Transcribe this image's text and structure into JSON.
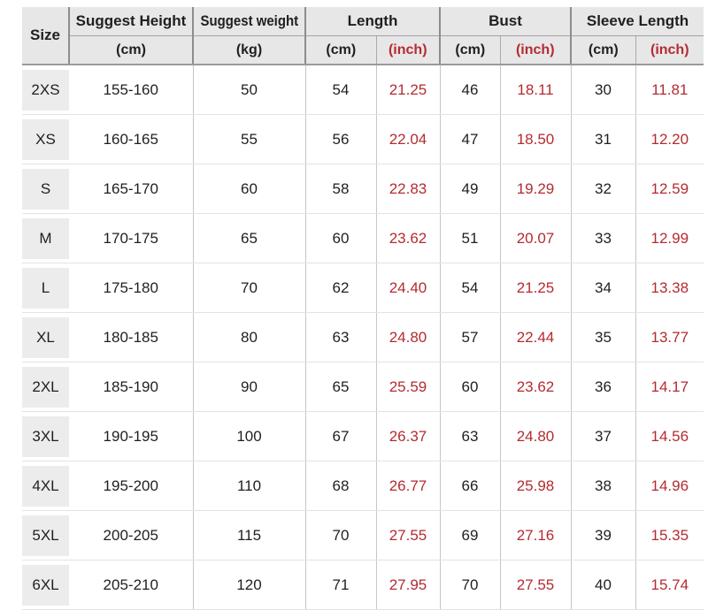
{
  "chart_data": {
    "type": "table",
    "header": {
      "size": "Size",
      "groups": [
        {
          "label": "Suggest Height",
          "units": [
            "(cm)"
          ]
        },
        {
          "label": "Suggest weight",
          "units": [
            "(kg)"
          ]
        },
        {
          "label": "Length",
          "units": [
            "(cm)",
            "(inch)"
          ]
        },
        {
          "label": "Bust",
          "units": [
            "(cm)",
            "(inch)"
          ]
        },
        {
          "label": "Sleeve Length",
          "units": [
            "(cm)",
            "(inch)"
          ]
        }
      ],
      "flat_columns": [
        "Size",
        "Suggest Height (cm)",
        "Suggest weight (kg)",
        "Length (cm)",
        "Length (inch)",
        "Bust (cm)",
        "Bust (inch)",
        "Sleeve Length (cm)",
        "Sleeve Length (inch)"
      ]
    },
    "rows": [
      {
        "size": "2XS",
        "height_cm": "155-160",
        "weight_kg": "50",
        "length_cm": "54",
        "length_inch": "21.25",
        "bust_cm": "46",
        "bust_inch": "18.11",
        "sleeve_cm": "30",
        "sleeve_inch": "11.81"
      },
      {
        "size": "XS",
        "height_cm": "160-165",
        "weight_kg": "55",
        "length_cm": "56",
        "length_inch": "22.04",
        "bust_cm": "47",
        "bust_inch": "18.50",
        "sleeve_cm": "31",
        "sleeve_inch": "12.20"
      },
      {
        "size": "S",
        "height_cm": "165-170",
        "weight_kg": "60",
        "length_cm": "58",
        "length_inch": "22.83",
        "bust_cm": "49",
        "bust_inch": "19.29",
        "sleeve_cm": "32",
        "sleeve_inch": "12.59"
      },
      {
        "size": "M",
        "height_cm": "170-175",
        "weight_kg": "65",
        "length_cm": "60",
        "length_inch": "23.62",
        "bust_cm": "51",
        "bust_inch": "20.07",
        "sleeve_cm": "33",
        "sleeve_inch": "12.99"
      },
      {
        "size": "L",
        "height_cm": "175-180",
        "weight_kg": "70",
        "length_cm": "62",
        "length_inch": "24.40",
        "bust_cm": "54",
        "bust_inch": "21.25",
        "sleeve_cm": "34",
        "sleeve_inch": "13.38"
      },
      {
        "size": "XL",
        "height_cm": "180-185",
        "weight_kg": "80",
        "length_cm": "63",
        "length_inch": "24.80",
        "bust_cm": "57",
        "bust_inch": "22.44",
        "sleeve_cm": "35",
        "sleeve_inch": "13.77"
      },
      {
        "size": "2XL",
        "height_cm": "185-190",
        "weight_kg": "90",
        "length_cm": "65",
        "length_inch": "25.59",
        "bust_cm": "60",
        "bust_inch": "23.62",
        "sleeve_cm": "36",
        "sleeve_inch": "14.17"
      },
      {
        "size": "3XL",
        "height_cm": "190-195",
        "weight_kg": "100",
        "length_cm": "67",
        "length_inch": "26.37",
        "bust_cm": "63",
        "bust_inch": "24.80",
        "sleeve_cm": "37",
        "sleeve_inch": "14.56"
      },
      {
        "size": "4XL",
        "height_cm": "195-200",
        "weight_kg": "110",
        "length_cm": "68",
        "length_inch": "26.77",
        "bust_cm": "66",
        "bust_inch": "25.98",
        "sleeve_cm": "38",
        "sleeve_inch": "14.96"
      },
      {
        "size": "5XL",
        "height_cm": "200-205",
        "weight_kg": "115",
        "length_cm": "70",
        "length_inch": "27.55",
        "bust_cm": "69",
        "bust_inch": "27.16",
        "sleeve_cm": "39",
        "sleeve_inch": "15.35"
      },
      {
        "size": "6XL",
        "height_cm": "205-210",
        "weight_kg": "120",
        "length_cm": "71",
        "length_inch": "27.95",
        "bust_cm": "70",
        "bust_inch": "27.55",
        "sleeve_cm": "40",
        "sleeve_inch": "15.74"
      }
    ]
  },
  "colors": {
    "inch_red": "#b42b31",
    "header_bg": "#e7e7e7",
    "size_cell_bg": "#ececec",
    "header_divider": "#8d8d8d",
    "body_divider": "#c6c6c6"
  }
}
